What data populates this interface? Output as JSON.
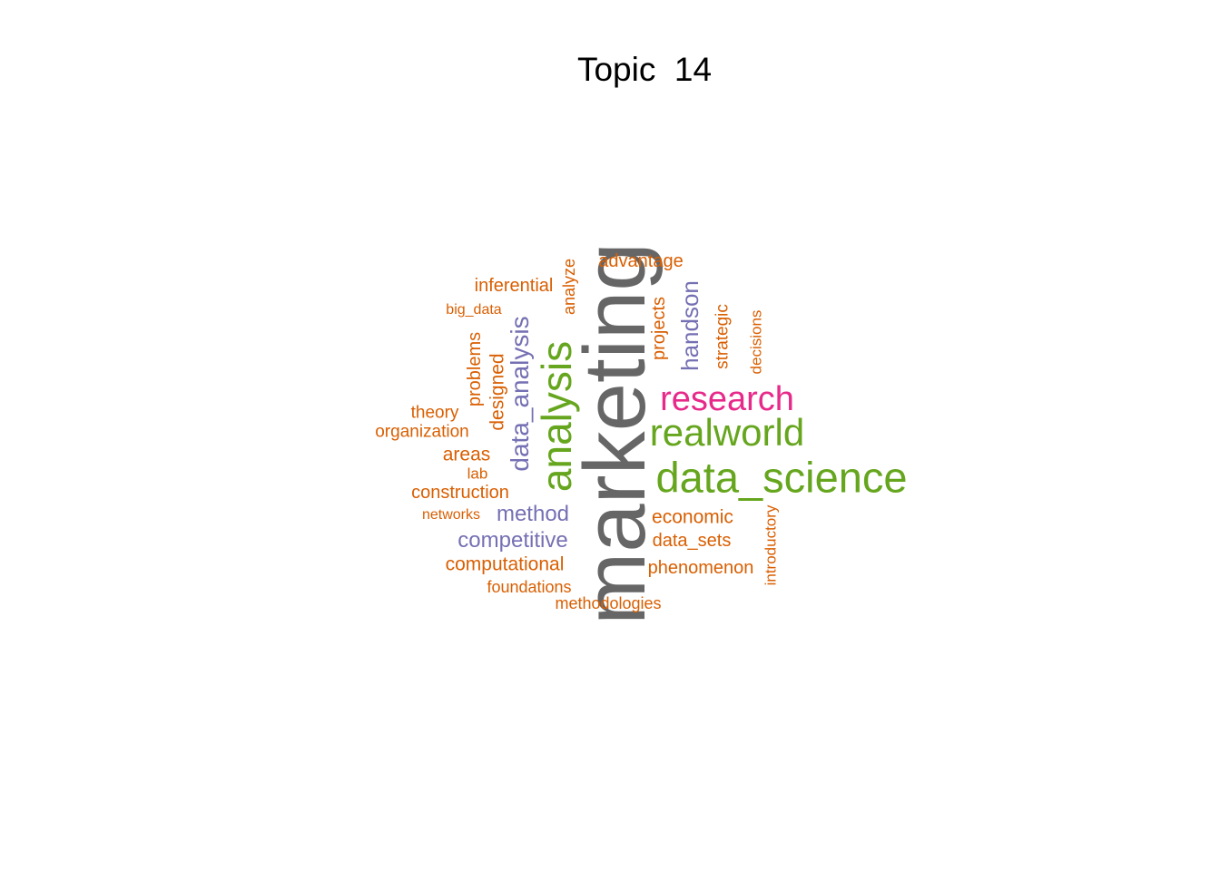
{
  "title": "Topic  14",
  "palette": {
    "grey": "#666666",
    "green": "#66a61e",
    "pink": "#e7298a",
    "purple": "#7570b3",
    "orange": "#d95f02"
  },
  "words": [
    {
      "text": "marketing",
      "color": "grey",
      "weight": 6
    },
    {
      "text": "data_science",
      "color": "green",
      "weight": 4
    },
    {
      "text": "analysis",
      "color": "green",
      "weight": 4
    },
    {
      "text": "realworld",
      "color": "green",
      "weight": 4
    },
    {
      "text": "research",
      "color": "pink",
      "weight": 3
    },
    {
      "text": "data_analysis",
      "color": "purple",
      "weight": 2
    },
    {
      "text": "handson",
      "color": "purple",
      "weight": 2
    },
    {
      "text": "method",
      "color": "purple",
      "weight": 2
    },
    {
      "text": "competitive",
      "color": "purple",
      "weight": 2
    },
    {
      "text": "advantage",
      "color": "orange",
      "weight": 1
    },
    {
      "text": "inferential",
      "color": "orange",
      "weight": 1
    },
    {
      "text": "analyze",
      "color": "orange",
      "weight": 1
    },
    {
      "text": "big_data",
      "color": "orange",
      "weight": 1
    },
    {
      "text": "projects",
      "color": "orange",
      "weight": 1
    },
    {
      "text": "strategic",
      "color": "orange",
      "weight": 1
    },
    {
      "text": "decisions",
      "color": "orange",
      "weight": 1
    },
    {
      "text": "problems",
      "color": "orange",
      "weight": 1
    },
    {
      "text": "designed",
      "color": "orange",
      "weight": 1
    },
    {
      "text": "theory",
      "color": "orange",
      "weight": 1
    },
    {
      "text": "organization",
      "color": "orange",
      "weight": 1
    },
    {
      "text": "areas",
      "color": "orange",
      "weight": 1
    },
    {
      "text": "lab",
      "color": "orange",
      "weight": 1
    },
    {
      "text": "construction",
      "color": "orange",
      "weight": 1
    },
    {
      "text": "networks",
      "color": "orange",
      "weight": 1
    },
    {
      "text": "computational",
      "color": "orange",
      "weight": 1
    },
    {
      "text": "foundations",
      "color": "orange",
      "weight": 1
    },
    {
      "text": "methodologies",
      "color": "orange",
      "weight": 1
    },
    {
      "text": "economic",
      "color": "orange",
      "weight": 1
    },
    {
      "text": "data_sets",
      "color": "orange",
      "weight": 1
    },
    {
      "text": "phenomenon",
      "color": "orange",
      "weight": 1
    },
    {
      "text": "introductory",
      "color": "orange",
      "weight": 1
    }
  ]
}
